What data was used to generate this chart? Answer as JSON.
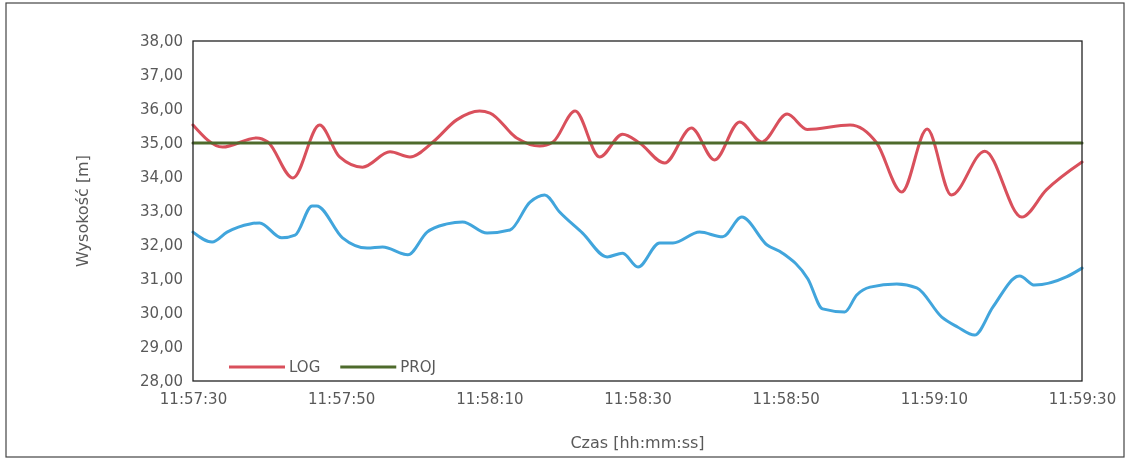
{
  "chart_data": {
    "type": "line",
    "xlabel": "Czas [hh:mm:ss]",
    "ylabel": "Wysokość [m]",
    "xlim": [
      11.958333,
      11.991667
    ],
    "xticks": [
      {
        "value": 11.958333,
        "label": "11:57:30"
      },
      {
        "value": 11.963889,
        "label": "11:57:50"
      },
      {
        "value": 11.969444,
        "label": "11:58:10"
      },
      {
        "value": 11.975,
        "label": "11:58:30"
      },
      {
        "value": 11.980556,
        "label": "11:58:50"
      },
      {
        "value": 11.986111,
        "label": "11:59:10"
      },
      {
        "value": 11.991667,
        "label": "11:59:30"
      }
    ],
    "ylim": [
      28,
      38
    ],
    "yticks": [
      {
        "value": 28,
        "label": "28,00"
      },
      {
        "value": 29,
        "label": "29,00"
      },
      {
        "value": 30,
        "label": "30,00"
      },
      {
        "value": 31,
        "label": "31,00"
      },
      {
        "value": 32,
        "label": "32,00"
      },
      {
        "value": 33,
        "label": "33,00"
      },
      {
        "value": 34,
        "label": "34,00"
      },
      {
        "value": 35,
        "label": "35,00"
      },
      {
        "value": 36,
        "label": "36,00"
      },
      {
        "value": 37,
        "label": "37,00"
      },
      {
        "value": 38,
        "label": "38,00"
      }
    ],
    "grid": false,
    "legend": "bottom left",
    "marker": "none",
    "line_style": "solid",
    "series": [
      {
        "color": "#41a5dc",
        "x": [
          11.958333,
          11.95905,
          11.95961,
          11.96047,
          11.96083,
          11.96166,
          11.96216,
          11.9628,
          11.96297,
          11.96394,
          11.96486,
          11.96544,
          11.96639,
          11.96711,
          11.96786,
          11.96844,
          11.96936,
          11.97022,
          11.97097,
          11.97152,
          11.97208,
          11.97294,
          11.97386,
          11.97444,
          11.97502,
          11.97583,
          11.97633,
          11.97733,
          11.97819,
          11.97891,
          11.97986,
          11.98044,
          11.98139,
          11.98194,
          11.98277,
          11.98322,
          11.98372,
          11.98472,
          11.98547,
          11.98641,
          11.987,
          11.98764,
          11.98833,
          11.98933,
          11.98989,
          11.99108,
          11.991667
        ],
        "values": [
          32.38,
          32.09,
          32.38,
          32.62,
          32.65,
          32.21,
          32.29,
          33.15,
          33.15,
          32.21,
          31.91,
          31.94,
          31.71,
          32.38,
          32.62,
          32.68,
          32.35,
          32.44,
          33.26,
          33.47,
          32.97,
          32.35,
          31.65,
          31.76,
          31.35,
          32.06,
          32.06,
          32.38,
          32.24,
          32.82,
          32.0,
          31.76,
          31.0,
          30.12,
          30.03,
          30.53,
          30.76,
          30.85,
          30.74,
          29.88,
          29.59,
          29.35,
          30.18,
          31.09,
          30.82,
          31.06,
          31.32
        ]
      },
      {
        "name": "LOG",
        "color": "#d9505c",
        "x": [
          11.958333,
          11.95944,
          11.96072,
          11.96114,
          11.96208,
          11.96308,
          11.96383,
          11.96469,
          11.96572,
          11.96647,
          11.96733,
          11.96822,
          11.96908,
          11.96947,
          11.97047,
          11.97133,
          11.97183,
          11.97266,
          11.97358,
          11.97444,
          11.97508,
          11.97602,
          11.97702,
          11.97789,
          11.97883,
          11.97966,
          11.98061,
          11.98136,
          11.98297,
          11.98397,
          11.98491,
          11.98586,
          11.98677,
          11.98802,
          11.98941,
          11.99033,
          11.991667
        ],
        "values": [
          35.53,
          34.88,
          35.15,
          35.03,
          33.97,
          35.53,
          34.59,
          34.29,
          34.74,
          34.59,
          35.03,
          35.68,
          35.94,
          35.88,
          35.15,
          34.91,
          35.03,
          35.94,
          34.59,
          35.26,
          35.0,
          34.41,
          35.44,
          34.5,
          35.62,
          35.03,
          35.85,
          35.4,
          35.53,
          35.0,
          33.56,
          35.41,
          33.47,
          34.76,
          32.82,
          33.62,
          34.44
        ]
      },
      {
        "name": "PROJ",
        "color": "#4e6b2c",
        "x": [
          11.958333,
          11.991667
        ],
        "values": [
          35,
          35
        ]
      }
    ]
  }
}
